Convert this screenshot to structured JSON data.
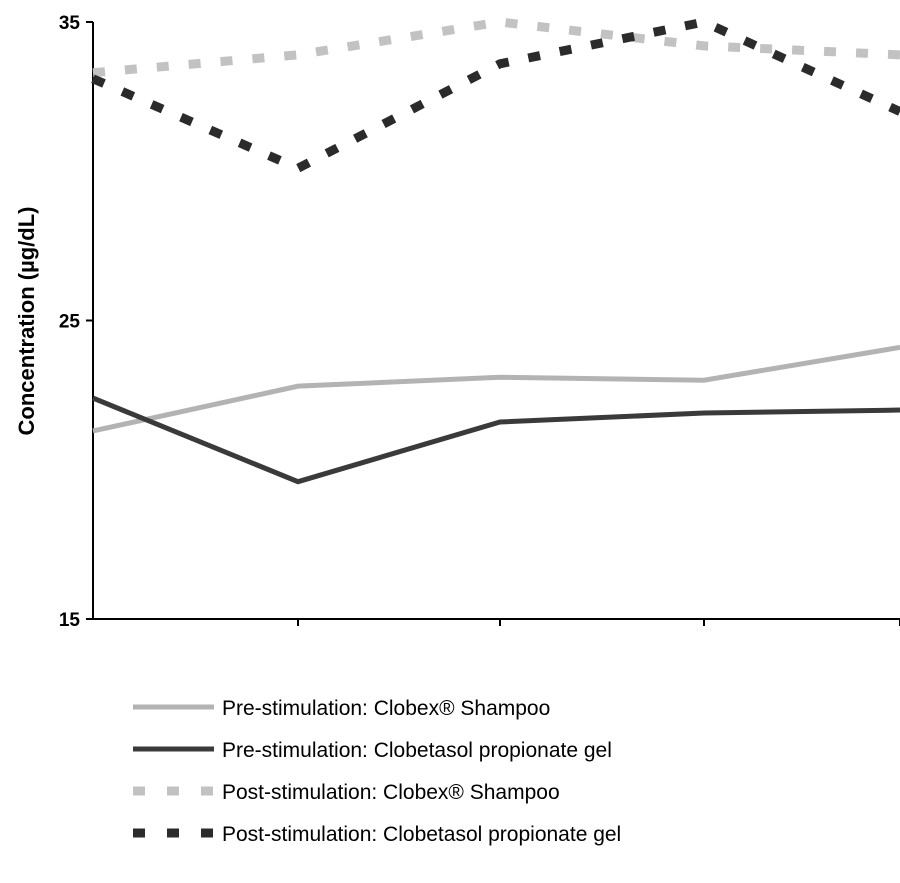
{
  "chart_data": {
    "type": "line",
    "ylabel": "Concentration (µg/dL)",
    "xlabel": "",
    "ylim": [
      15,
      35
    ],
    "yticks": [
      15,
      25,
      35
    ],
    "x": [
      0,
      1,
      2,
      3,
      4
    ],
    "grid": false,
    "legend_position": "bottom",
    "series": [
      {
        "name": "Pre-stimulation: Clobex® Shampoo",
        "values": [
          21.3,
          22.8,
          23.1,
          23.0,
          24.1
        ],
        "color": "#b3b3b3",
        "style": "solid"
      },
      {
        "name": "Pre-stimulation: Clobetasol propionate gel",
        "values": [
          22.4,
          19.6,
          21.6,
          21.9,
          22.0
        ],
        "color": "#3a3a3a",
        "style": "solid"
      },
      {
        "name": "Post-stimulation: Clobex® Shampoo",
        "values": [
          33.3,
          33.9,
          35.0,
          34.2,
          33.9
        ],
        "color": "#c2c2c2",
        "style": "dashed"
      },
      {
        "name": "Post-stimulation: Clobetasol propionate gel",
        "values": [
          33.1,
          30.1,
          33.6,
          35.0,
          32.0
        ],
        "color": "#2b2b2b",
        "style": "dashed"
      }
    ]
  }
}
